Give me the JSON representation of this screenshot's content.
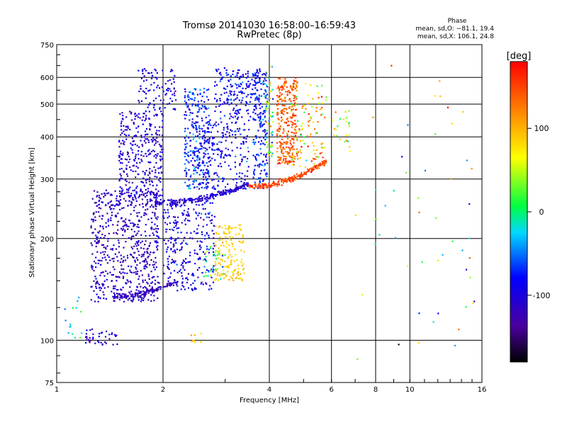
{
  "chart_data": {
    "type": "scatter",
    "title": "Tromsø 20141030 16:58:00–16:59:43",
    "subtitle": "RwPretec (8p)",
    "xlabel": "Frequency [MHz]",
    "ylabel": "Stationary phase Virtual Height [km]",
    "x_scale": "log",
    "y_scale": "log",
    "xlim": [
      1,
      16
    ],
    "ylim": [
      75,
      750
    ],
    "x_ticks": [
      1,
      2,
      4,
      6,
      8,
      10,
      16
    ],
    "y_ticks": [
      75,
      100,
      200,
      300,
      400,
      500,
      600,
      750
    ],
    "grid": true,
    "phase_box": {
      "heading": "Phase",
      "line1": "mean, sd,O: −81.1, 19.4",
      "line2": "mean, sd,X: 106.1, 24.8"
    },
    "colorbar": {
      "label": "[deg]",
      "range": [
        -180,
        180
      ],
      "ticks": [
        100,
        0,
        -100
      ]
    },
    "clusters": [
      {
        "fmin": 1.25,
        "fmax": 1.95,
        "hmin": 130,
        "hmax": 280,
        "phase": -115,
        "sd": 18,
        "n": 620
      },
      {
        "fmin": 1.5,
        "fmax": 2.0,
        "hmin": 260,
        "hmax": 480,
        "phase": -105,
        "sd": 18,
        "n": 330
      },
      {
        "fmin": 1.7,
        "fmax": 2.2,
        "hmin": 480,
        "hmax": 640,
        "phase": -100,
        "sd": 15,
        "n": 90
      },
      {
        "fmin": 2.0,
        "fmax": 2.8,
        "hmin": 140,
        "hmax": 260,
        "phase": -95,
        "sd": 20,
        "n": 280
      },
      {
        "fmin": 2.3,
        "fmax": 2.7,
        "hmin": 280,
        "hmax": 560,
        "phase": -75,
        "sd": 25,
        "n": 260
      },
      {
        "fmin": 2.5,
        "fmax": 3.5,
        "hmin": 280,
        "hmax": 450,
        "phase": -90,
        "sd": 22,
        "n": 230
      },
      {
        "fmin": 2.8,
        "fmax": 3.8,
        "hmin": 450,
        "hmax": 640,
        "phase": -85,
        "sd": 22,
        "n": 200
      },
      {
        "fmin": 3.6,
        "fmax": 3.95,
        "hmin": 280,
        "hmax": 620,
        "phase": -75,
        "sd": 22,
        "n": 170
      },
      {
        "fmin": 3.9,
        "fmax": 4.1,
        "hmin": 350,
        "hmax": 650,
        "phase": 10,
        "sd": 50,
        "n": 60
      },
      {
        "fmin": 4.2,
        "fmax": 4.8,
        "hmin": 330,
        "hmax": 600,
        "phase": 140,
        "sd": 20,
        "n": 300
      },
      {
        "fmin": 4.6,
        "fmax": 5.8,
        "hmin": 320,
        "hmax": 580,
        "phase": 90,
        "sd": 45,
        "n": 110
      },
      {
        "fmin": 2.8,
        "fmax": 3.4,
        "hmin": 150,
        "hmax": 220,
        "phase": 88,
        "sd": 12,
        "n": 150
      },
      {
        "fmin": 2.6,
        "fmax": 3.0,
        "hmin": 150,
        "hmax": 190,
        "phase": 10,
        "sd": 40,
        "n": 40
      },
      {
        "fmin": 1.2,
        "fmax": 1.5,
        "hmin": 97,
        "hmax": 108,
        "phase": -110,
        "sd": 15,
        "n": 40
      },
      {
        "fmin": 2.4,
        "fmax": 2.6,
        "hmin": 98,
        "hmax": 105,
        "phase": 90,
        "sd": 10,
        "n": 8
      },
      {
        "fmin": 1.05,
        "fmax": 1.2,
        "hmin": 100,
        "hmax": 140,
        "phase": -20,
        "sd": 25,
        "n": 15
      },
      {
        "fmin": 6.0,
        "fmax": 6.8,
        "hmin": 360,
        "hmax": 480,
        "phase": 70,
        "sd": 40,
        "n": 25
      },
      {
        "fmin": 7.0,
        "fmax": 15.5,
        "hmin": 85,
        "hmax": 650,
        "phase": 40,
        "sd": 90,
        "n": 50
      }
    ],
    "traces": [
      {
        "f0": 1.9,
        "f1": 3.5,
        "h0": 255,
        "h1": 290,
        "phase": -105,
        "sd": 15,
        "n": 220
      },
      {
        "f0": 3.5,
        "f1": 5.8,
        "h0": 285,
        "h1": 340,
        "phase": 150,
        "sd": 15,
        "n": 200
      },
      {
        "f0": 1.45,
        "f1": 2.2,
        "h0": 135,
        "h1": 150,
        "phase": -120,
        "sd": 10,
        "n": 120
      }
    ]
  }
}
